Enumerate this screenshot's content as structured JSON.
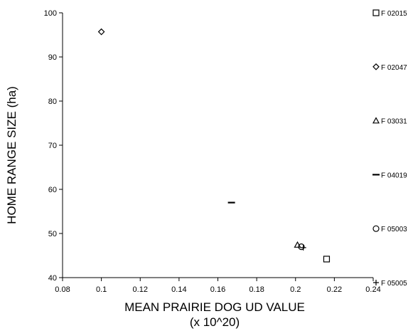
{
  "chart_data": {
    "type": "scatter",
    "title": "",
    "xlabel_line1": "MEAN PRAIRIE DOG UD VALUE",
    "xlabel_line2": "(x 10^20)",
    "ylabel": "HOME RANGE SIZE (ha)",
    "xlim": [
      0.08,
      0.24
    ],
    "ylim": [
      40,
      100
    ],
    "xticks": [
      "0.08",
      "0.1",
      "0.12",
      "0.14",
      "0.16",
      "0.18",
      "0.2",
      "0.22",
      "0.24"
    ],
    "yticks": [
      "40",
      "50",
      "60",
      "70",
      "80",
      "90",
      "100"
    ],
    "grid": false,
    "legend_position": "right",
    "series": [
      {
        "name": "F 02015",
        "marker": "square",
        "x": 0.216,
        "y": 44.2
      },
      {
        "name": "F 02047",
        "marker": "diamond",
        "x": 0.1,
        "y": 95.7
      },
      {
        "name": "F 03031",
        "marker": "triangle",
        "x": 0.201,
        "y": 47.4
      },
      {
        "name": "F 04019",
        "marker": "dash",
        "x": 0.167,
        "y": 57.0
      },
      {
        "name": "F 05003",
        "marker": "circle",
        "x": 0.203,
        "y": 47.0
      },
      {
        "name": "F 05005",
        "marker": "plus",
        "x": 0.204,
        "y": 46.8
      }
    ]
  }
}
